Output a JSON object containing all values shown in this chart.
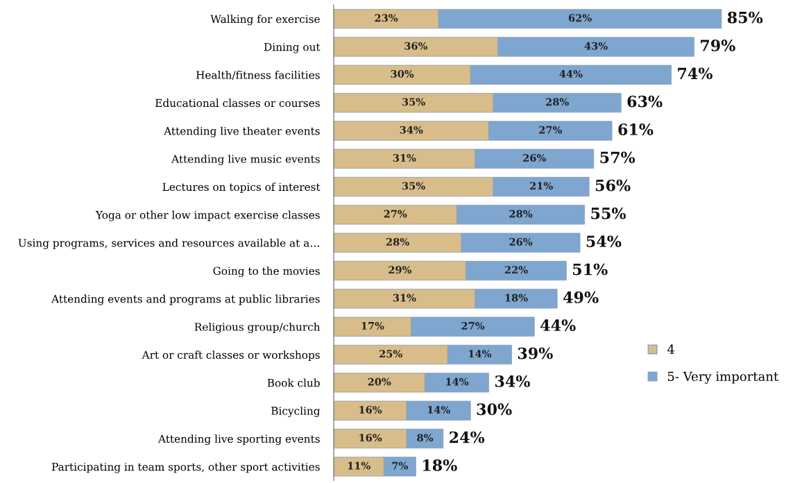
{
  "chart_data": {
    "type": "bar",
    "orientation": "horizontal",
    "stacked": true,
    "legend": "right",
    "grid": false,
    "categories": [
      "Walking for exercise",
      "Dining out",
      "Health/fitness facilities",
      "Educational classes or courses",
      "Attending live theater events",
      "Attending live music events",
      "Lectures on topics of interest",
      "Yoga or other low impact exercise classes",
      "Using programs, services and resources available at a…",
      "Going to the movies",
      "Attending events and programs at public libraries",
      "Religious group/church",
      "Art or craft classes or workshops",
      "Book club",
      "Bicycling",
      "Attending live sporting events",
      "Participating in team sports, other sport activities"
    ],
    "series": [
      {
        "name": "4",
        "color": "#d8bd8a",
        "values": [
          23,
          36,
          30,
          35,
          34,
          31,
          35,
          27,
          28,
          29,
          31,
          17,
          25,
          20,
          16,
          16,
          11
        ],
        "value_labels": [
          "23%",
          "36%",
          "30%",
          "35%",
          "34%",
          "31%",
          "35%",
          "27%",
          "28%",
          "29%",
          "31%",
          "17%",
          "25%",
          "20%",
          "16%",
          "16%",
          "11%"
        ]
      },
      {
        "name": "5- Very important",
        "color": "#7ea6cf",
        "values": [
          62,
          43,
          44,
          28,
          27,
          26,
          21,
          28,
          26,
          22,
          18,
          27,
          14,
          14,
          14,
          8,
          7
        ],
        "value_labels": [
          "62%",
          "43%",
          "44%",
          "28%",
          "27%",
          "26%",
          "21%",
          "28%",
          "26%",
          "22%",
          "18%",
          "27%",
          "14%",
          "14%",
          "14%",
          "8%",
          "7%"
        ]
      }
    ],
    "totals": [
      "85%",
      "79%",
      "74%",
      "63%",
      "61%",
      "57%",
      "56%",
      "55%",
      "54%",
      "51%",
      "49%",
      "44%",
      "39%",
      "34%",
      "30%",
      "24%",
      "18%"
    ]
  }
}
